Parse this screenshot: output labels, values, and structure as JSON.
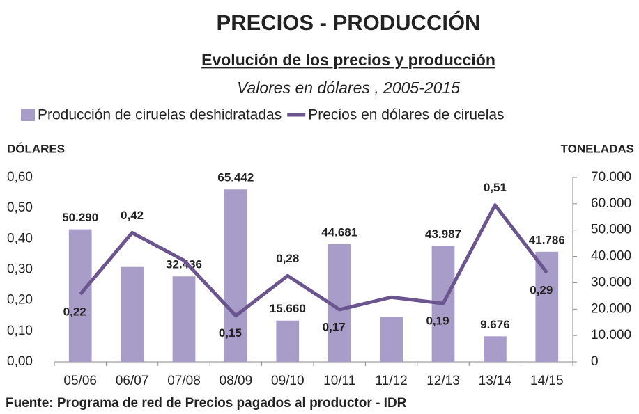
{
  "chart_data": {
    "type": "bar",
    "title": "PRECIOS - PRODUCCIÓN",
    "subtitle": "Evolución de los precios y producción",
    "subtitle2": "Valores en dólares , 2005-2015",
    "y_label": "DÓLARES",
    "y2_label": "TONELADAS",
    "source": "Fuente: Programa de red de Precios pagados al productor - IDR",
    "categories": [
      "05/06",
      "06/07",
      "07/08",
      "08/09",
      "09/10",
      "10/11",
      "11/12",
      "12/13",
      "13/14",
      "14/15"
    ],
    "series": [
      {
        "name": "Producción de ciruelas deshidratadas",
        "type": "bar",
        "axis": "y2",
        "color": "#a89cc8",
        "label_color": "#9a86c0",
        "values": [
          50290,
          36000,
          32436,
          65442,
          15660,
          44681,
          17000,
          43987,
          9676,
          41786
        ],
        "value_labels": [
          "50.290",
          null,
          "32.436",
          "65.442",
          "15.660",
          "44.681",
          null,
          "43.987",
          "9.676",
          "41.786"
        ]
      },
      {
        "name": "Precios en dólares de ciruelas",
        "type": "line",
        "color": "#6a558e",
        "label_color": "#000000",
        "values": [
          0.22,
          0.42,
          0.33,
          0.15,
          0.28,
          0.17,
          0.21,
          0.19,
          0.51,
          0.29
        ],
        "value_labels": [
          "0,22",
          "0,42",
          null,
          "0,15",
          "0,28",
          "0,17",
          null,
          "0,19",
          "0,51",
          "0,29"
        ]
      }
    ],
    "ylim": [
      0,
      0.6
    ],
    "yticks": [
      {
        "value": 0,
        "label": "0,00"
      },
      {
        "value": 0.1,
        "label": "0,10"
      },
      {
        "value": 0.2,
        "label": "0,20"
      },
      {
        "value": 0.3,
        "label": "0,30"
      },
      {
        "value": 0.4,
        "label": "0,40"
      },
      {
        "value": 0.5,
        "label": "0,50"
      },
      {
        "value": 0.6,
        "label": "0,60"
      }
    ],
    "y2lim": [
      0,
      70000
    ],
    "y2ticks": [
      0,
      {
        "value": 10000,
        "label": "10.000"
      },
      {
        "value": 20000,
        "label": "20.000"
      },
      {
        "value": 30000,
        "label": "30.000"
      },
      {
        "value": 40000,
        "label": "40.000"
      },
      {
        "value": 50000,
        "label": "50.000"
      },
      {
        "value": 60000,
        "label": "60.000"
      },
      {
        "value": 70000,
        "label": "70.000"
      }
    ]
  }
}
